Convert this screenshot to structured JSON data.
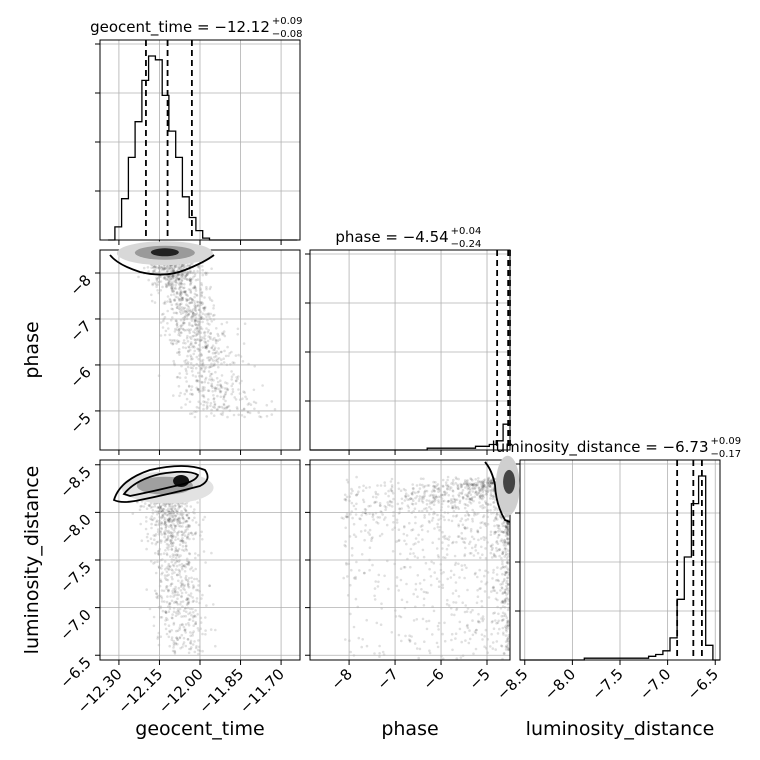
{
  "chart_data": {
    "type": "corner",
    "parameters": [
      {
        "name": "geocent_time",
        "xlabel": "geocent_time",
        "median": "−12.12",
        "plus": "+0.09",
        "minus": "−0.08",
        "range": [
          -12.37,
          -11.63
        ],
        "ticks": [
          "−12.30",
          "−12.15",
          "−12.00",
          "−11.85",
          "−11.70"
        ],
        "tick_values": [
          -12.3,
          -12.15,
          -12.0,
          -11.85,
          -11.7
        ],
        "quantiles": [
          -12.2,
          -12.12,
          -12.03
        ],
        "hist_edges_start": -12.34,
        "hist_bin_width": 0.025,
        "hist_counts": [
          0,
          7,
          22,
          44,
          63,
          85,
          98,
          96,
          77,
          58,
          44,
          23,
          12,
          5,
          1,
          0,
          0,
          0,
          0,
          0,
          0,
          0,
          0,
          0,
          0,
          0,
          0,
          0
        ]
      },
      {
        "name": "phase",
        "xlabel": "phase",
        "ylabel": "phase",
        "median": "−4.54",
        "plus": "+0.04",
        "minus": "−0.24",
        "range": [
          -8.85,
          -4.5
        ],
        "ticks": [
          "−8",
          "−7",
          "−6",
          "−5"
        ],
        "tick_values": [
          -8,
          -7,
          -6,
          -5
        ],
        "quantiles": [
          -4.78,
          -4.54,
          -4.5
        ],
        "hist_edges_start": -8.85,
        "hist_bin_width": 0.15,
        "hist_counts": [
          0,
          0,
          0,
          0,
          0,
          0,
          0,
          0,
          0,
          0,
          0,
          0,
          0,
          0,
          0,
          0,
          0,
          1,
          1,
          1,
          1,
          1,
          1,
          1,
          2,
          2,
          3,
          5,
          14,
          100
        ]
      },
      {
        "name": "luminosity_distance",
        "xlabel": "luminosity_distance",
        "ylabel": "luminosity_distance",
        "median": "−6.73",
        "plus": "+0.09",
        "minus": "−0.17",
        "range": [
          -8.55,
          -6.45
        ],
        "ticks": [
          "−8.5",
          "−8.0",
          "−7.5",
          "−7.0",
          "−6.5"
        ],
        "tick_values": [
          -8.5,
          -8.0,
          -7.5,
          -7.0,
          -6.5
        ],
        "quantiles": [
          -6.9,
          -6.73,
          -6.64
        ],
        "hist_edges_start": -8.55,
        "hist_bin_width": 0.075,
        "hist_counts": [
          0,
          0,
          0,
          0,
          0,
          0,
          0,
          0,
          0,
          1,
          1,
          1,
          1,
          1,
          1,
          1,
          1,
          1,
          2,
          3,
          5,
          12,
          33,
          56,
          85,
          100,
          8,
          0
        ]
      }
    ],
    "title_template": "{name} = {median}",
    "pair_panels": [
      {
        "x": "geocent_time",
        "y": "phase"
      },
      {
        "x": "geocent_time",
        "y": "luminosity_distance"
      },
      {
        "x": "phase",
        "y": "luminosity_distance"
      }
    ],
    "grid": true,
    "axis_label_texts": {
      "phase_y_ticks": [
        "−5",
        "−6",
        "−7",
        "−8"
      ],
      "lumdist_y_ticks": [
        "−6.5",
        "−7.0",
        "−7.5",
        "−8.0",
        "−8.5"
      ]
    }
  }
}
